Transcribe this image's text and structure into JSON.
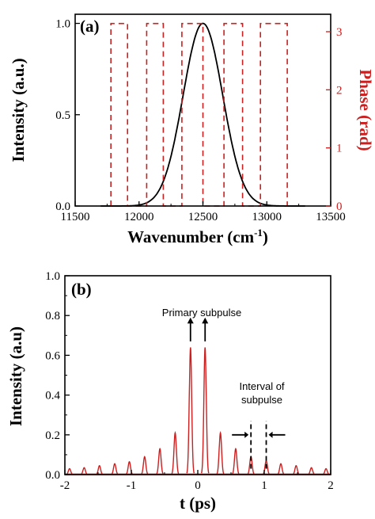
{
  "chart_data": [
    {
      "type": "line",
      "panel_label": "(a)",
      "xlabel": "Wavenumber (cm",
      "xlabel_sup": "-1",
      "xlabel_close": ")",
      "ylabel": "Intensity (a.u.)",
      "y2label": "Phase (rad)",
      "xlim": [
        11500,
        13500
      ],
      "ylim": [
        0,
        1.05
      ],
      "y2lim": [
        0,
        3.3
      ],
      "xticks": [
        11500,
        12000,
        12500,
        13000,
        13500
      ],
      "xtick_labels": [
        "11500",
        "12000",
        "12500",
        "13000",
        "13500"
      ],
      "yticks": [
        0,
        0.5,
        1.0
      ],
      "ytick_labels": [
        "0.0",
        "0.5",
        "1.0"
      ],
      "y2ticks": [
        0,
        1,
        2,
        3
      ],
      "y2tick_labels": [
        "0",
        "1",
        "2",
        "3"
      ],
      "colors": {
        "intensity": "#000000",
        "phase": "#cc1f1f"
      },
      "series": [
        {
          "axis": "left",
          "style": "solid",
          "gaussian": {
            "center": 12500,
            "amplitude": 1.0,
            "sigma": 155,
            "x_range": [
              11700,
              13300
            ]
          }
        },
        {
          "axis": "right",
          "style": "dashed",
          "phase_steps": {
            "x": [
              11780,
              11910,
              12060,
              12190,
              12335,
              12500,
              12665,
              12810,
              12950,
              13160
            ],
            "y": [
              3.14,
              0,
              3.14,
              0,
              3.14,
              0,
              3.14,
              0,
              3.14,
              0
            ]
          }
        }
      ]
    },
    {
      "type": "bar",
      "panel_label": "(b)",
      "xlabel": "t (ps)",
      "ylabel": "Intensity (a.u)",
      "xlim": [
        -2,
        2
      ],
      "ylim": [
        0,
        1.0
      ],
      "xticks": [
        -2,
        -1,
        0,
        1,
        2
      ],
      "xtick_labels": [
        "-2",
        "-1",
        "0",
        "1",
        "2"
      ],
      "yticks": [
        0,
        0.2,
        0.4,
        0.6,
        0.8,
        1.0
      ],
      "ytick_labels": [
        "0.0",
        "0.2",
        "0.4",
        "0.6",
        "0.8",
        "1.0"
      ],
      "color": "#cc1f1f",
      "peak_width": 0.018,
      "peaks": {
        "x": [
          -1.93,
          -1.71,
          -1.48,
          -1.25,
          -1.03,
          -0.8,
          -0.57,
          -0.34,
          -0.11,
          0.11,
          0.34,
          0.57,
          0.8,
          1.03,
          1.25,
          1.48,
          1.71,
          1.93
        ],
        "y": [
          0.03,
          0.035,
          0.045,
          0.055,
          0.065,
          0.09,
          0.13,
          0.21,
          0.64,
          0.64,
          0.21,
          0.13,
          0.09,
          0.07,
          0.055,
          0.045,
          0.035,
          0.03
        ]
      },
      "annotations": {
        "primary": "Primary subpulse",
        "interval_line1": "Interval of",
        "interval_line2": "subpulse"
      }
    }
  ]
}
